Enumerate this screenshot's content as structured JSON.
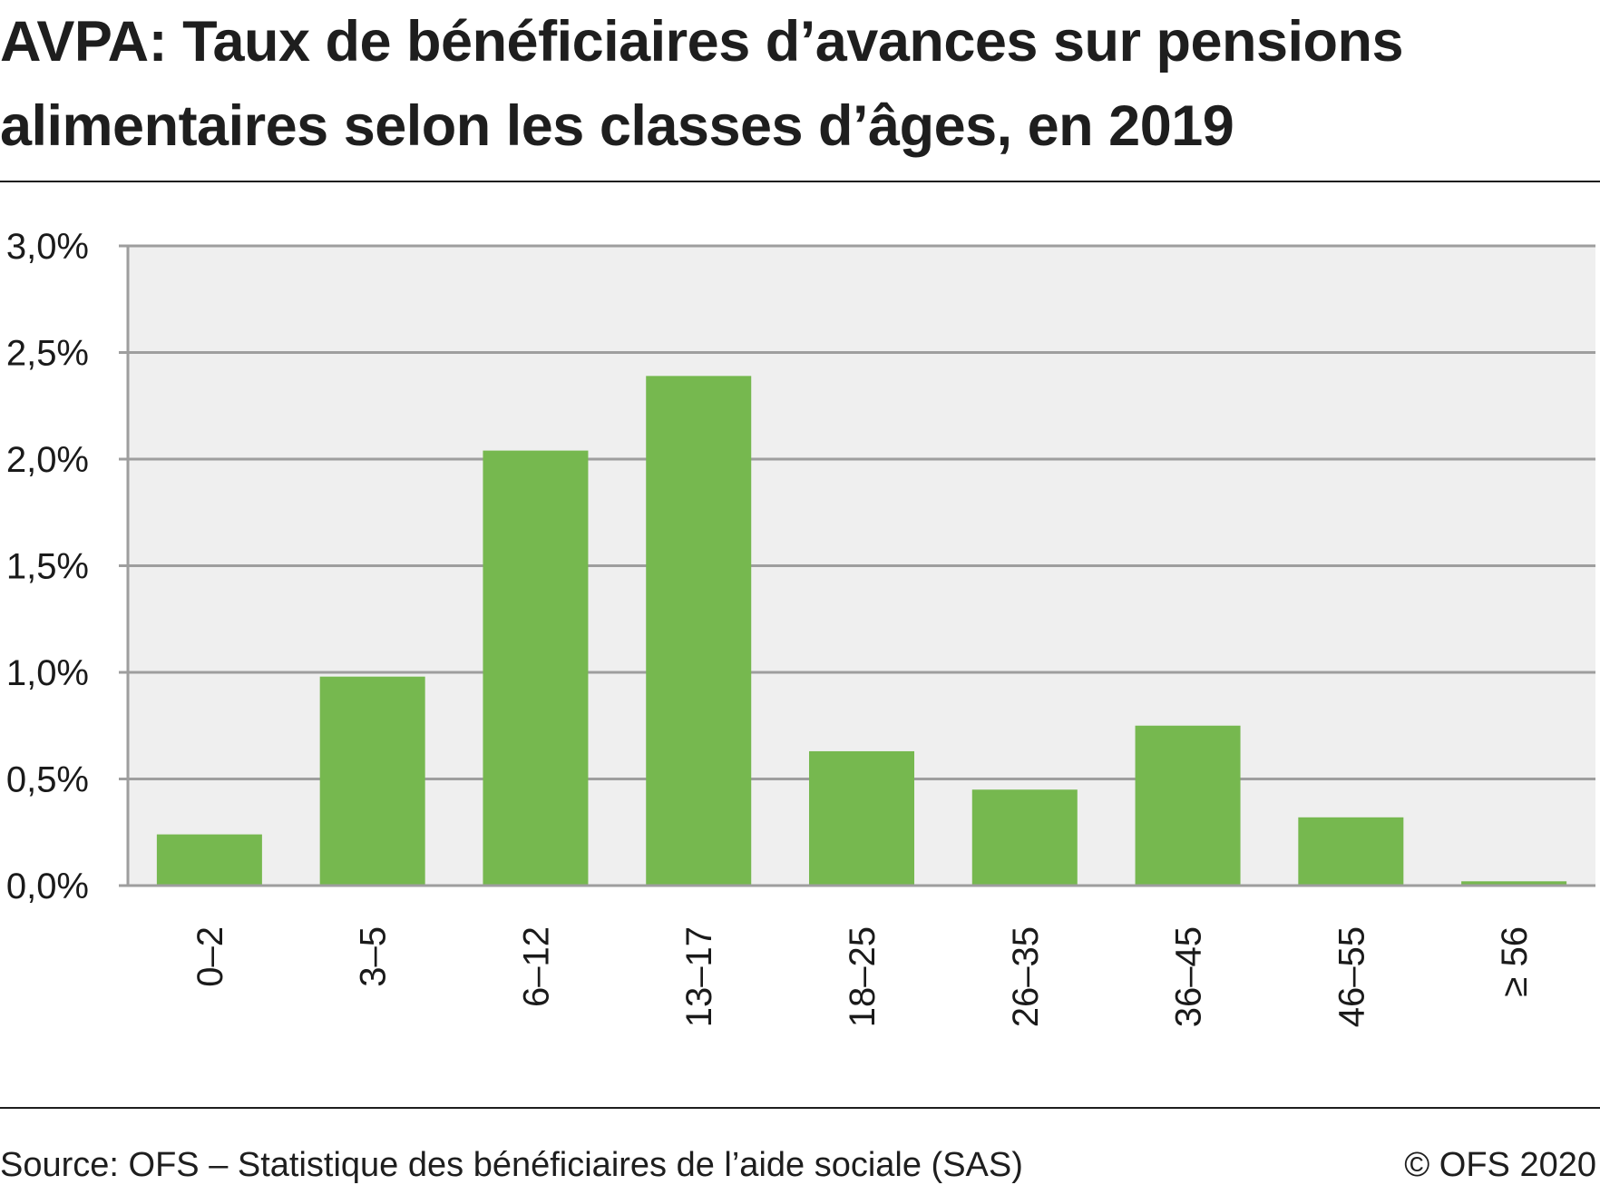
{
  "title": "AVPA: Taux de bénéficiaires d’avances sur pensions alimentaires selon les classes d’âges, en 2019",
  "footer": {
    "source": "Source: OFS – Statistique des bénéficiaires de l’aide sociale (SAS)",
    "copyright": "© OFS 2020"
  },
  "colors": {
    "bar": "#76b84f",
    "plot_background": "#efefef",
    "gridline": "#9e9e9e"
  },
  "chart_data": {
    "type": "bar",
    "title": "AVPA: Taux de bénéficiaires d’avances sur pensions alimentaires selon les classes d’âges, en 2019",
    "xlabel": "",
    "ylabel": "",
    "categories": [
      "0–2",
      "3–5",
      "6–12",
      "13–17",
      "18–25",
      "26–35",
      "36–45",
      "46–55",
      "≥ 56"
    ],
    "values": [
      0.24,
      0.98,
      2.04,
      2.39,
      0.63,
      0.45,
      0.75,
      0.32,
      0.02
    ],
    "unit": "%",
    "ylim": [
      0,
      3.0
    ],
    "yticks": [
      0,
      0.5,
      1.0,
      1.5,
      2.0,
      2.5,
      3.0
    ],
    "ytick_labels": [
      "0,0%",
      "0,5%",
      "1,0%",
      "1,5%",
      "2,0%",
      "2,5%",
      "3,0%"
    ],
    "grid": true,
    "legend": "none",
    "x_tick_rotation": "vertical"
  }
}
